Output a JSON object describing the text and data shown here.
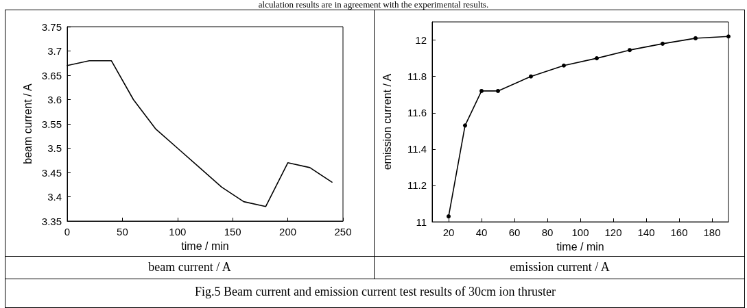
{
  "chart_data": [
    {
      "type": "line",
      "xlabel": "time / min",
      "ylabel": "beam current / A",
      "x": [
        0,
        20,
        40,
        60,
        80,
        100,
        120,
        140,
        160,
        180,
        200,
        220,
        240
      ],
      "series": [
        {
          "color": "#000000",
          "values": [
            3.67,
            3.68,
            3.68,
            3.6,
            3.54,
            3.5,
            3.46,
            3.42,
            3.39,
            3.38,
            3.47,
            3.46,
            3.43
          ]
        }
      ],
      "xlim": [
        0,
        250
      ],
      "xticks": [
        0,
        50,
        100,
        150,
        200,
        250
      ],
      "ylim": [
        3.35,
        3.75
      ],
      "yticks": [
        3.35,
        3.4,
        3.45,
        3.5,
        3.55,
        3.6,
        3.65,
        3.7,
        3.75
      ],
      "grid": false,
      "marker": "none",
      "line_style": "solid",
      "annotations": [
        "alculation results are in agreement with the experimental results.",
        "beam current / A"
      ]
    },
    {
      "type": "line",
      "xlabel": "time / min",
      "ylabel": "emission current / A",
      "x": [
        20,
        30,
        40,
        50,
        70,
        90,
        110,
        130,
        150,
        170,
        190
      ],
      "series": [
        {
          "color": "#000000",
          "values": [
            11.03,
            11.53,
            11.72,
            11.72,
            11.8,
            11.86,
            11.9,
            11.945,
            11.98,
            12.01,
            12.02
          ]
        }
      ],
      "xlim": [
        10,
        190
      ],
      "xticks": [
        20,
        40,
        60,
        80,
        100,
        120,
        140,
        160,
        180
      ],
      "ylim": [
        11,
        12.1
      ],
      "yticks": [
        11,
        11.2,
        11.4,
        11.6,
        11.8,
        12
      ],
      "grid": false,
      "marker": "circle",
      "line_style": "solid",
      "annotations": [
        "emission current / A",
        "Fig.5 Beam current and emission current test results of 30cm ion thruster"
      ]
    }
  ]
}
